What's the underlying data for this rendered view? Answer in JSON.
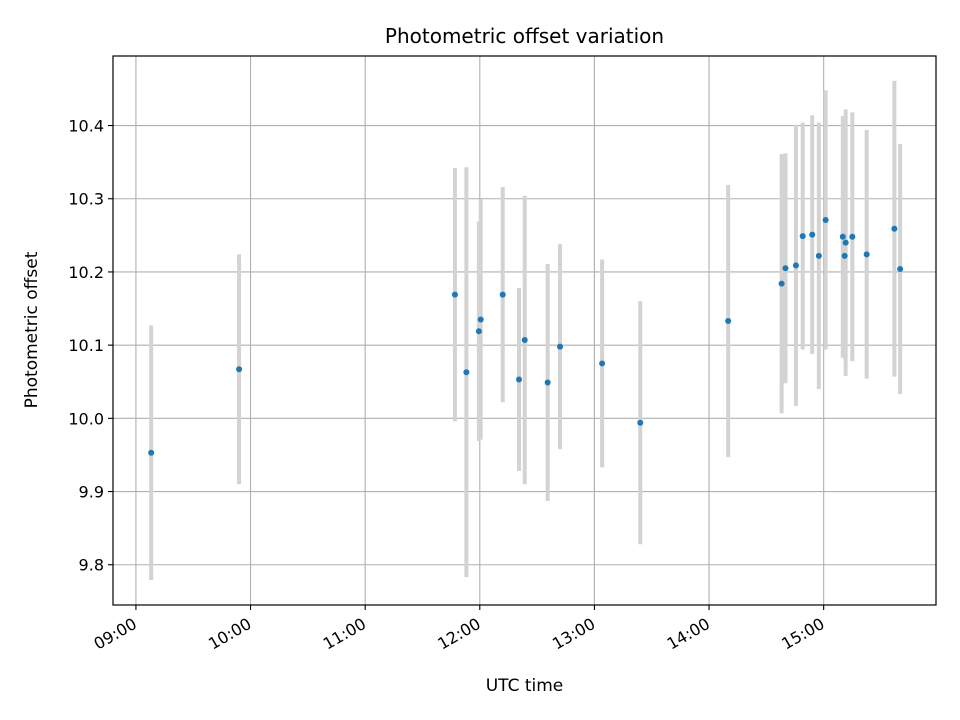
{
  "chart_data": {
    "type": "scatter",
    "title": "Photometric offset variation",
    "xlabel": "UTC time",
    "ylabel": "Photometric offset",
    "x_unit": "UTC hour of day",
    "xlim": [
      8.8,
      15.98
    ],
    "ylim": [
      9.745,
      10.495
    ],
    "xticks": [
      {
        "value": 9,
        "label": "09:00"
      },
      {
        "value": 10,
        "label": "10:00"
      },
      {
        "value": 11,
        "label": "11:00"
      },
      {
        "value": 12,
        "label": "12:00"
      },
      {
        "value": 13,
        "label": "13:00"
      },
      {
        "value": 14,
        "label": "14:00"
      },
      {
        "value": 15,
        "label": "15:00"
      }
    ],
    "yticks": [
      {
        "value": 9.8,
        "label": "9.8"
      },
      {
        "value": 9.9,
        "label": "9.9"
      },
      {
        "value": 10.0,
        "label": "10.0"
      },
      {
        "value": 10.1,
        "label": "10.1"
      },
      {
        "value": 10.2,
        "label": "10.2"
      },
      {
        "value": 10.3,
        "label": "10.3"
      },
      {
        "value": 10.4,
        "label": "10.4"
      }
    ],
    "grid": true,
    "point_color": "#1f77b4",
    "errorbar_color": "#d3d3d3",
    "points": [
      {
        "x": 9.133,
        "y": 9.953,
        "yerr": 0.174
      },
      {
        "x": 9.9,
        "y": 10.067,
        "yerr": 0.157
      },
      {
        "x": 11.783,
        "y": 10.169,
        "yerr": 0.173
      },
      {
        "x": 11.883,
        "y": 10.063,
        "yerr": 0.28
      },
      {
        "x": 11.992,
        "y": 10.119,
        "yerr": 0.15
      },
      {
        "x": 12.008,
        "y": 10.135,
        "yerr": 0.164
      },
      {
        "x": 12.2,
        "y": 10.169,
        "yerr": 0.147
      },
      {
        "x": 12.342,
        "y": 10.053,
        "yerr": 0.125
      },
      {
        "x": 12.392,
        "y": 10.107,
        "yerr": 0.197
      },
      {
        "x": 12.592,
        "y": 10.049,
        "yerr": 0.162
      },
      {
        "x": 12.7,
        "y": 10.098,
        "yerr": 0.14
      },
      {
        "x": 13.067,
        "y": 10.075,
        "yerr": 0.142
      },
      {
        "x": 13.4,
        "y": 9.994,
        "yerr": 0.166
      },
      {
        "x": 14.167,
        "y": 10.133,
        "yerr": 0.186
      },
      {
        "x": 14.633,
        "y": 10.184,
        "yerr": 0.177
      },
      {
        "x": 14.667,
        "y": 10.205,
        "yerr": 0.157
      },
      {
        "x": 14.758,
        "y": 10.209,
        "yerr": 0.192
      },
      {
        "x": 14.817,
        "y": 10.249,
        "yerr": 0.155
      },
      {
        "x": 14.9,
        "y": 10.251,
        "yerr": 0.163
      },
      {
        "x": 14.958,
        "y": 10.222,
        "yerr": 0.182
      },
      {
        "x": 15.017,
        "y": 10.271,
        "yerr": 0.177
      },
      {
        "x": 15.167,
        "y": 10.248,
        "yerr": 0.165
      },
      {
        "x": 15.183,
        "y": 10.222,
        "yerr": 0.14
      },
      {
        "x": 15.192,
        "y": 10.24,
        "yerr": 0.182
      },
      {
        "x": 15.25,
        "y": 10.248,
        "yerr": 0.17
      },
      {
        "x": 15.375,
        "y": 10.224,
        "yerr": 0.17
      },
      {
        "x": 15.617,
        "y": 10.259,
        "yerr": 0.202
      },
      {
        "x": 15.667,
        "y": 10.204,
        "yerr": 0.171
      }
    ]
  }
}
